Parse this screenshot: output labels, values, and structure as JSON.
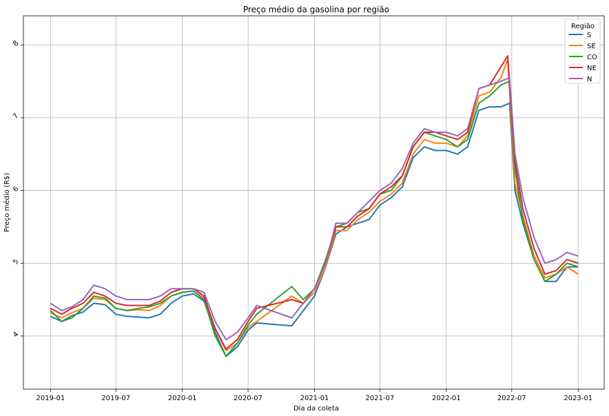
{
  "chart_data": {
    "type": "line",
    "title": "Preço médio da gasolina por região",
    "xlabel": "Dia da coleta",
    "ylabel": "Preço médio (R$)",
    "xlim": [
      "2018-10-18",
      "2023-03-14"
    ],
    "ylim": [
      3.27,
      8.4
    ],
    "x_ticks": [
      "2019-01",
      "2019-07",
      "2020-01",
      "2020-07",
      "2021-01",
      "2021-07",
      "2022-01",
      "2022-07",
      "2023-01"
    ],
    "y_ticks": [
      4,
      5,
      6,
      7,
      8
    ],
    "grid": true,
    "legend": {
      "title": "Região",
      "position": "top-right"
    },
    "series": [
      {
        "name": "S",
        "color": "#1f77b4",
        "points": [
          [
            "2019-01-01",
            4.27
          ],
          [
            "2019-02-01",
            4.2
          ],
          [
            "2019-03-01",
            4.28
          ],
          [
            "2019-04-01",
            4.33
          ],
          [
            "2019-05-01",
            4.45
          ],
          [
            "2019-06-01",
            4.43
          ],
          [
            "2019-07-01",
            4.3
          ],
          [
            "2019-08-01",
            4.27
          ],
          [
            "2019-09-01",
            4.26
          ],
          [
            "2019-10-01",
            4.25
          ],
          [
            "2019-11-01",
            4.3
          ],
          [
            "2019-12-01",
            4.45
          ],
          [
            "2020-01-01",
            4.55
          ],
          [
            "2020-02-01",
            4.58
          ],
          [
            "2020-03-01",
            4.48
          ],
          [
            "2020-04-01",
            4.05
          ],
          [
            "2020-05-01",
            3.72
          ],
          [
            "2020-06-01",
            3.85
          ],
          [
            "2020-07-01",
            4.08
          ],
          [
            "2020-07-25",
            4.18
          ],
          [
            "2020-10-30",
            4.14
          ],
          [
            "2020-12-01",
            4.35
          ],
          [
            "2021-01-01",
            4.55
          ],
          [
            "2021-02-01",
            4.95
          ],
          [
            "2021-03-01",
            5.4
          ],
          [
            "2021-04-01",
            5.5
          ],
          [
            "2021-05-01",
            5.55
          ],
          [
            "2021-06-01",
            5.6
          ],
          [
            "2021-07-01",
            5.8
          ],
          [
            "2021-08-01",
            5.9
          ],
          [
            "2021-09-01",
            6.05
          ],
          [
            "2021-10-01",
            6.45
          ],
          [
            "2021-11-01",
            6.6
          ],
          [
            "2021-12-01",
            6.55
          ],
          [
            "2022-01-01",
            6.55
          ],
          [
            "2022-02-01",
            6.5
          ],
          [
            "2022-03-01",
            6.6
          ],
          [
            "2022-04-01",
            7.1
          ],
          [
            "2022-05-01",
            7.15
          ],
          [
            "2022-06-01",
            7.15
          ],
          [
            "2022-06-25",
            7.2
          ],
          [
            "2022-07-10",
            6.0
          ],
          [
            "2022-08-01",
            5.55
          ],
          [
            "2022-09-01",
            5.05
          ],
          [
            "2022-10-01",
            4.75
          ],
          [
            "2022-11-01",
            4.75
          ],
          [
            "2022-12-01",
            4.95
          ],
          [
            "2023-01-01",
            4.95
          ]
        ]
      },
      {
        "name": "SE",
        "color": "#ff7f0e",
        "points": [
          [
            "2019-01-01",
            4.32
          ],
          [
            "2019-02-01",
            4.25
          ],
          [
            "2019-03-01",
            4.32
          ],
          [
            "2019-04-01",
            4.38
          ],
          [
            "2019-05-01",
            4.52
          ],
          [
            "2019-06-01",
            4.5
          ],
          [
            "2019-07-01",
            4.38
          ],
          [
            "2019-08-01",
            4.35
          ],
          [
            "2019-09-01",
            4.36
          ],
          [
            "2019-10-01",
            4.35
          ],
          [
            "2019-11-01",
            4.42
          ],
          [
            "2019-12-01",
            4.55
          ],
          [
            "2020-01-01",
            4.6
          ],
          [
            "2020-02-01",
            4.62
          ],
          [
            "2020-03-01",
            4.52
          ],
          [
            "2020-04-01",
            4.1
          ],
          [
            "2020-05-01",
            3.8
          ],
          [
            "2020-06-01",
            3.9
          ],
          [
            "2020-07-01",
            4.12
          ],
          [
            "2020-07-25",
            4.2
          ],
          [
            "2020-10-30",
            4.55
          ],
          [
            "2020-12-01",
            4.45
          ],
          [
            "2021-01-01",
            4.6
          ],
          [
            "2021-02-01",
            4.95
          ],
          [
            "2021-03-01",
            5.45
          ],
          [
            "2021-04-01",
            5.45
          ],
          [
            "2021-05-01",
            5.6
          ],
          [
            "2021-06-01",
            5.7
          ],
          [
            "2021-07-01",
            5.85
          ],
          [
            "2021-08-01",
            5.95
          ],
          [
            "2021-09-01",
            6.1
          ],
          [
            "2021-10-01",
            6.5
          ],
          [
            "2021-11-01",
            6.7
          ],
          [
            "2021-12-01",
            6.65
          ],
          [
            "2022-01-01",
            6.65
          ],
          [
            "2022-02-01",
            6.6
          ],
          [
            "2022-03-01",
            6.75
          ],
          [
            "2022-04-01",
            7.3
          ],
          [
            "2022-05-01",
            7.35
          ],
          [
            "2022-06-01",
            7.55
          ],
          [
            "2022-06-20",
            7.8
          ],
          [
            "2022-07-10",
            6.1
          ],
          [
            "2022-08-01",
            5.65
          ],
          [
            "2022-09-01",
            5.1
          ],
          [
            "2022-10-01",
            4.8
          ],
          [
            "2022-11-01",
            4.85
          ],
          [
            "2022-12-01",
            4.95
          ],
          [
            "2023-01-01",
            4.85
          ]
        ]
      },
      {
        "name": "CO",
        "color": "#2ca02c",
        "points": [
          [
            "2019-01-01",
            4.35
          ],
          [
            "2019-02-01",
            4.2
          ],
          [
            "2019-03-01",
            4.25
          ],
          [
            "2019-04-01",
            4.38
          ],
          [
            "2019-05-01",
            4.55
          ],
          [
            "2019-06-01",
            4.52
          ],
          [
            "2019-07-01",
            4.38
          ],
          [
            "2019-08-01",
            4.35
          ],
          [
            "2019-09-01",
            4.38
          ],
          [
            "2019-10-01",
            4.4
          ],
          [
            "2019-11-01",
            4.45
          ],
          [
            "2019-12-01",
            4.55
          ],
          [
            "2020-01-01",
            4.6
          ],
          [
            "2020-02-01",
            4.62
          ],
          [
            "2020-03-01",
            4.5
          ],
          [
            "2020-04-01",
            4.0
          ],
          [
            "2020-05-01",
            3.72
          ],
          [
            "2020-06-01",
            3.9
          ],
          [
            "2020-07-01",
            4.15
          ],
          [
            "2020-07-25",
            4.3
          ],
          [
            "2020-10-30",
            4.68
          ],
          [
            "2020-12-01",
            4.5
          ],
          [
            "2021-01-01",
            4.65
          ],
          [
            "2021-02-01",
            5.05
          ],
          [
            "2021-03-01",
            5.5
          ],
          [
            "2021-04-01",
            5.55
          ],
          [
            "2021-05-01",
            5.7
          ],
          [
            "2021-06-01",
            5.75
          ],
          [
            "2021-07-01",
            5.95
          ],
          [
            "2021-08-01",
            6.0
          ],
          [
            "2021-09-01",
            6.2
          ],
          [
            "2021-10-01",
            6.6
          ],
          [
            "2021-11-01",
            6.8
          ],
          [
            "2021-12-01",
            6.75
          ],
          [
            "2022-01-01",
            6.7
          ],
          [
            "2022-02-01",
            6.6
          ],
          [
            "2022-03-01",
            6.7
          ],
          [
            "2022-04-01",
            7.2
          ],
          [
            "2022-05-01",
            7.3
          ],
          [
            "2022-06-01",
            7.45
          ],
          [
            "2022-06-25",
            7.5
          ],
          [
            "2022-07-10",
            6.3
          ],
          [
            "2022-08-01",
            5.6
          ],
          [
            "2022-09-01",
            5.05
          ],
          [
            "2022-10-01",
            4.75
          ],
          [
            "2022-11-01",
            4.85
          ],
          [
            "2022-12-01",
            5.0
          ],
          [
            "2023-01-01",
            4.95
          ]
        ]
      },
      {
        "name": "NE",
        "color": "#d62728",
        "points": [
          [
            "2019-01-01",
            4.38
          ],
          [
            "2019-02-01",
            4.3
          ],
          [
            "2019-03-01",
            4.38
          ],
          [
            "2019-04-01",
            4.45
          ],
          [
            "2019-05-01",
            4.6
          ],
          [
            "2019-06-01",
            4.55
          ],
          [
            "2019-07-01",
            4.45
          ],
          [
            "2019-08-01",
            4.42
          ],
          [
            "2019-09-01",
            4.42
          ],
          [
            "2019-10-01",
            4.42
          ],
          [
            "2019-11-01",
            4.48
          ],
          [
            "2019-12-01",
            4.6
          ],
          [
            "2020-01-01",
            4.65
          ],
          [
            "2020-02-01",
            4.65
          ],
          [
            "2020-03-01",
            4.55
          ],
          [
            "2020-04-01",
            4.1
          ],
          [
            "2020-05-01",
            3.82
          ],
          [
            "2020-06-01",
            3.95
          ],
          [
            "2020-07-01",
            4.2
          ],
          [
            "2020-07-25",
            4.38
          ],
          [
            "2020-10-30",
            4.5
          ],
          [
            "2020-12-01",
            4.45
          ],
          [
            "2021-01-01",
            4.65
          ],
          [
            "2021-02-01",
            5.0
          ],
          [
            "2021-03-01",
            5.5
          ],
          [
            "2021-04-01",
            5.5
          ],
          [
            "2021-05-01",
            5.65
          ],
          [
            "2021-06-01",
            5.75
          ],
          [
            "2021-07-01",
            5.95
          ],
          [
            "2021-08-01",
            6.05
          ],
          [
            "2021-09-01",
            6.2
          ],
          [
            "2021-10-01",
            6.6
          ],
          [
            "2021-11-01",
            6.8
          ],
          [
            "2021-12-01",
            6.8
          ],
          [
            "2022-01-01",
            6.75
          ],
          [
            "2022-02-01",
            6.7
          ],
          [
            "2022-03-01",
            6.8
          ],
          [
            "2022-04-01",
            7.4
          ],
          [
            "2022-05-01",
            7.45
          ],
          [
            "2022-06-01",
            7.7
          ],
          [
            "2022-06-20",
            7.85
          ],
          [
            "2022-07-10",
            6.4
          ],
          [
            "2022-08-01",
            5.75
          ],
          [
            "2022-09-01",
            5.2
          ],
          [
            "2022-10-01",
            4.85
          ],
          [
            "2022-11-01",
            4.9
          ],
          [
            "2022-12-01",
            5.05
          ],
          [
            "2023-01-01",
            5.0
          ]
        ]
      },
      {
        "name": "N",
        "color": "#9467bd",
        "points": [
          [
            "2019-01-01",
            4.45
          ],
          [
            "2019-02-01",
            4.35
          ],
          [
            "2019-03-01",
            4.4
          ],
          [
            "2019-04-01",
            4.5
          ],
          [
            "2019-05-01",
            4.7
          ],
          [
            "2019-06-01",
            4.65
          ],
          [
            "2019-07-01",
            4.55
          ],
          [
            "2019-08-01",
            4.5
          ],
          [
            "2019-09-01",
            4.5
          ],
          [
            "2019-10-01",
            4.5
          ],
          [
            "2019-11-01",
            4.55
          ],
          [
            "2019-12-01",
            4.65
          ],
          [
            "2020-01-01",
            4.65
          ],
          [
            "2020-02-01",
            4.65
          ],
          [
            "2020-03-01",
            4.6
          ],
          [
            "2020-04-01",
            4.2
          ],
          [
            "2020-05-01",
            3.95
          ],
          [
            "2020-06-01",
            4.05
          ],
          [
            "2020-07-01",
            4.25
          ],
          [
            "2020-07-25",
            4.42
          ],
          [
            "2020-10-30",
            4.25
          ],
          [
            "2020-12-01",
            4.45
          ],
          [
            "2021-01-01",
            4.65
          ],
          [
            "2021-02-01",
            5.0
          ],
          [
            "2021-03-01",
            5.55
          ],
          [
            "2021-04-01",
            5.55
          ],
          [
            "2021-05-01",
            5.7
          ],
          [
            "2021-06-01",
            5.85
          ],
          [
            "2021-07-01",
            6.0
          ],
          [
            "2021-08-01",
            6.1
          ],
          [
            "2021-09-01",
            6.3
          ],
          [
            "2021-10-01",
            6.65
          ],
          [
            "2021-11-01",
            6.85
          ],
          [
            "2021-12-01",
            6.8
          ],
          [
            "2022-01-01",
            6.8
          ],
          [
            "2022-02-01",
            6.75
          ],
          [
            "2022-03-01",
            6.85
          ],
          [
            "2022-04-01",
            7.4
          ],
          [
            "2022-05-01",
            7.45
          ],
          [
            "2022-06-01",
            7.5
          ],
          [
            "2022-06-25",
            7.55
          ],
          [
            "2022-07-10",
            6.5
          ],
          [
            "2022-08-01",
            5.9
          ],
          [
            "2022-09-01",
            5.35
          ],
          [
            "2022-10-01",
            5.0
          ],
          [
            "2022-11-01",
            5.05
          ],
          [
            "2022-12-01",
            5.15
          ],
          [
            "2023-01-01",
            5.1
          ]
        ]
      }
    ]
  }
}
